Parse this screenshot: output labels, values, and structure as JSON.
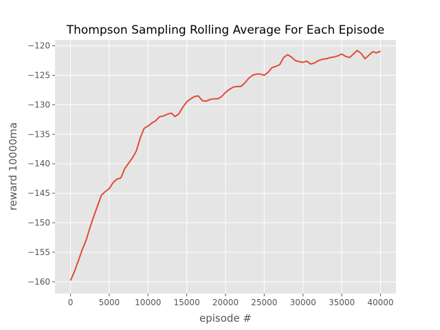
{
  "chart_data": {
    "type": "line",
    "title": "Thompson Sampling Rolling Average For Each Episode",
    "xlabel": "episode #",
    "ylabel": "reward 10000ma",
    "xlim": [
      -2000,
      42000
    ],
    "ylim": [
      -162,
      -119
    ],
    "xticks": [
      0,
      5000,
      10000,
      15000,
      20000,
      25000,
      30000,
      35000,
      40000
    ],
    "yticks": [
      -160,
      -155,
      -150,
      -145,
      -140,
      -135,
      -130,
      -125,
      -120
    ],
    "grid": true,
    "colors": {
      "background": "#e5e5e5",
      "grid": "#ffffff",
      "line": "#e24a33"
    },
    "series": [
      {
        "x": [
          0,
          500,
          1000,
          1500,
          2000,
          2500,
          3000,
          3500,
          4000,
          4500,
          5000,
          5500,
          6000,
          6500,
          7000,
          7500,
          8000,
          8500,
          9000,
          9500,
          10000,
          10500,
          11000,
          11500,
          12000,
          12500,
          13000,
          13500,
          14000,
          14500,
          15000,
          15500,
          16000,
          16500,
          17000,
          17500,
          18000,
          18500,
          19000,
          19500,
          20000,
          20500,
          21000,
          21500,
          22000,
          22500,
          23000,
          23500,
          24000,
          24500,
          25000,
          25500,
          26000,
          26500,
          27000,
          27500,
          28000,
          28500,
          29000,
          29500,
          30000,
          30500,
          31000,
          31500,
          32000,
          32500,
          33000,
          33500,
          34000,
          34500,
          35000,
          35500,
          36000,
          36500,
          37000,
          37500,
          38000,
          38500,
          39000,
          39500,
          40000
        ],
        "values": [
          -159.8,
          -158.3,
          -156.5,
          -154.6,
          -153.0,
          -150.9,
          -148.9,
          -147.1,
          -145.3,
          -144.7,
          -144.2,
          -143.2,
          -142.6,
          -142.4,
          -140.8,
          -139.9,
          -139.0,
          -137.8,
          -135.6,
          -134.0,
          -133.6,
          -133.1,
          -132.7,
          -132.0,
          -131.9,
          -131.6,
          -131.4,
          -132.0,
          -131.5,
          -130.4,
          -129.5,
          -129.0,
          -128.6,
          -128.5,
          -129.3,
          -129.4,
          -129.1,
          -129.0,
          -129.0,
          -128.6,
          -127.9,
          -127.4,
          -127.0,
          -126.9,
          -126.9,
          -126.3,
          -125.5,
          -125.0,
          -124.8,
          -124.8,
          -125.0,
          -124.5,
          -123.7,
          -123.5,
          -123.2,
          -122.0,
          -121.5,
          -121.9,
          -122.5,
          -122.7,
          -122.8,
          -122.6,
          -123.1,
          -122.9,
          -122.5,
          -122.3,
          -122.2,
          -122.0,
          -121.9,
          -121.7,
          -121.4,
          -121.8,
          -122.0,
          -121.4,
          -120.8,
          -121.3,
          -122.2,
          -121.6,
          -121.0,
          -121.2,
          -120.9
        ]
      }
    ]
  }
}
